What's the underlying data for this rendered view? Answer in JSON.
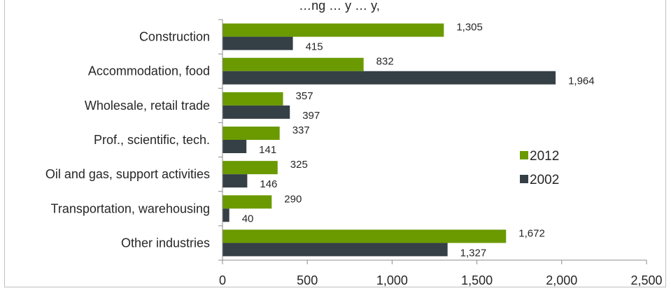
{
  "chart_data": {
    "type": "bar",
    "orientation": "horizontal",
    "title": "…ng … y … y,",
    "categories": [
      "Construction",
      "Accommodation, food",
      "Wholesale, retail trade",
      "Prof., scientific, tech.",
      "Oil and gas, support activities",
      "Transportation, warehousing",
      "Other industries"
    ],
    "series": [
      {
        "name": "2012",
        "color": "#6a9a00",
        "values": [
          1305,
          832,
          357,
          337,
          325,
          290,
          1672
        ],
        "labels": [
          "1,305",
          "832",
          "357",
          "337",
          "325",
          "290",
          "1,672"
        ]
      },
      {
        "name": "2002",
        "color": "#353f46",
        "values": [
          415,
          1964,
          397,
          141,
          146,
          40,
          1327
        ],
        "labels": [
          "415",
          "1,964",
          "397",
          "141",
          "146",
          "40",
          "1,327"
        ]
      }
    ],
    "xlim": [
      0,
      2500
    ],
    "x_ticks": [
      0,
      500,
      1000,
      1500,
      2000,
      2500
    ],
    "x_tick_labels": [
      "0",
      "500",
      "1,000",
      "1,500",
      "2,000",
      "2,500"
    ],
    "grid": false,
    "legend_position": "right"
  }
}
